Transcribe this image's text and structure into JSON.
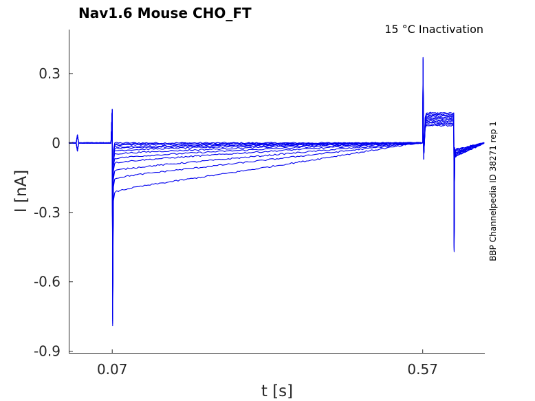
{
  "chart_data": {
    "type": "line",
    "title": "Nav1.6  Mouse  CHO_FT",
    "annotation": "15 °C  Inactivation",
    "side_label": "BBP Channelpedia ID 38271 rep 1",
    "xlabel": "t [s]",
    "ylabel": "I [nA]",
    "xlim": [
      0.0,
      0.67
    ],
    "ylim": [
      -0.91,
      0.49
    ],
    "xticks": [
      0.07,
      0.57
    ],
    "xtick_labels": [
      "0.07",
      "0.57"
    ],
    "yticks": [
      0.3,
      0,
      -0.3,
      -0.6,
      -0.9
    ],
    "ytick_labels": [
      "0.3",
      "0",
      "-0.3",
      "-0.6",
      "-0.9"
    ],
    "grid": false,
    "trace_color": "#0000ee",
    "axis_color": "#262626",
    "step_on": 0.07,
    "step_off": 0.57,
    "series": [
      {
        "early": 0.0,
        "late": 0.0,
        "tail": 0.075
      },
      {
        "early": -0.005,
        "late": -0.001,
        "tail": 0.08
      },
      {
        "early": -0.01,
        "late": -0.002,
        "tail": 0.085
      },
      {
        "early": -0.018,
        "late": -0.003,
        "tail": 0.09
      },
      {
        "early": -0.025,
        "late": -0.004,
        "tail": 0.095
      },
      {
        "early": -0.035,
        "late": -0.006,
        "tail": 0.1
      },
      {
        "early": -0.05,
        "late": -0.01,
        "tail": 0.105
      },
      {
        "early": -0.07,
        "late": -0.015,
        "tail": 0.11
      },
      {
        "early": -0.09,
        "late": -0.025,
        "tail": 0.115
      },
      {
        "early": -0.125,
        "late": -0.04,
        "tail": 0.12
      },
      {
        "early": -0.16,
        "late": -0.06,
        "tail": 0.125
      },
      {
        "early": -0.22,
        "late": -0.09,
        "tail": 0.13
      }
    ]
  }
}
